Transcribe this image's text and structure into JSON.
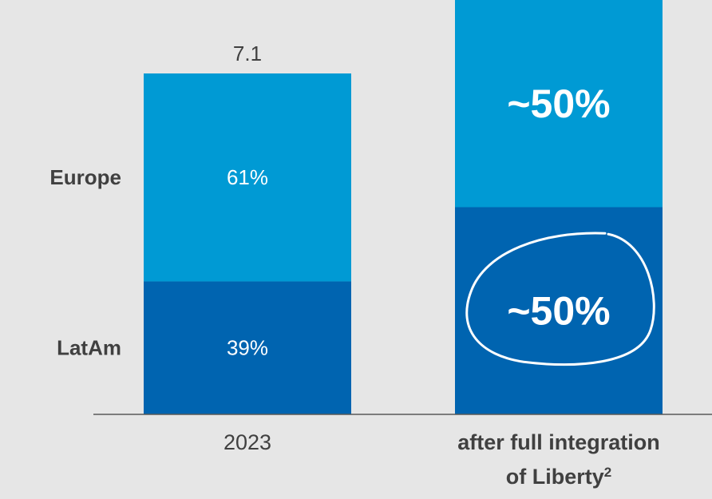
{
  "chart_data": {
    "type": "bar",
    "stacked": true,
    "normalized": true,
    "categories": [
      "2023",
      "after full integration of Liberty²"
    ],
    "category_labels": [
      {
        "lines": [
          "2023"
        ],
        "superscript": ""
      },
      {
        "lines": [
          "after full integration",
          "of Liberty"
        ],
        "superscript": "2"
      }
    ],
    "category_bold": [
      false,
      true
    ],
    "totals": [
      "7.1",
      ""
    ],
    "series": [
      {
        "name": "LatAm",
        "values": [
          39,
          50
        ],
        "labels": [
          "39%",
          "~50%"
        ],
        "color": "#0064b0"
      },
      {
        "name": "Europe",
        "values": [
          61,
          50
        ],
        "labels": [
          "61%",
          "~50%"
        ],
        "color": "#009ad4"
      }
    ],
    "highlight": {
      "category_index": 1,
      "series_index": 0,
      "style": "circle"
    },
    "ylim": [
      0,
      100
    ],
    "grid": false,
    "legend": "left",
    "background": "#e6e6e6",
    "label_color": "#ffffff",
    "axis_color": "#595959",
    "text_color": "#404040"
  }
}
